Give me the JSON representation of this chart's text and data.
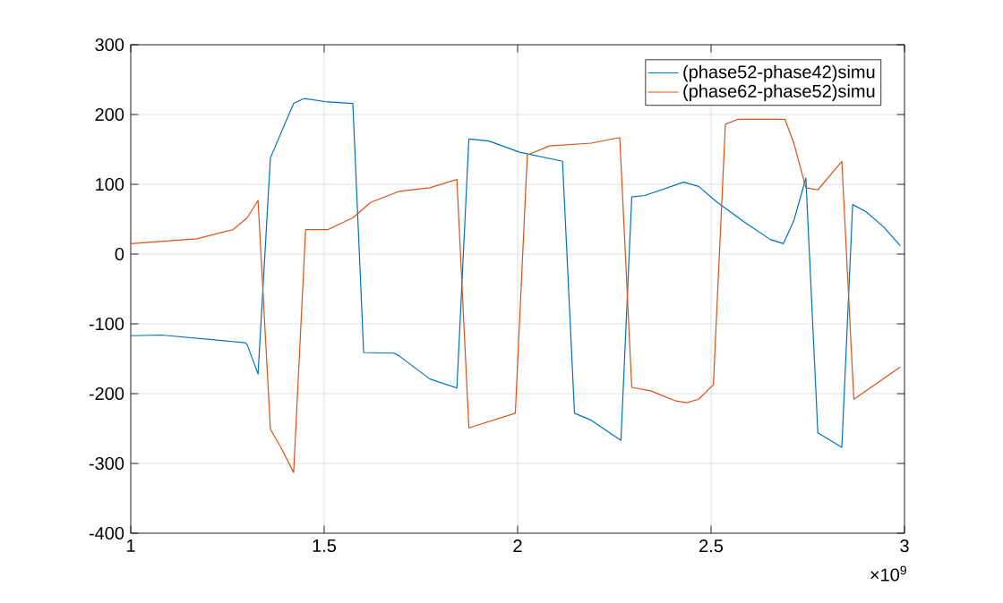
{
  "chart_data": {
    "type": "line",
    "xlim": [
      1,
      3
    ],
    "ylim": [
      -400,
      300
    ],
    "xticks": [
      1,
      1.5,
      2,
      2.5,
      3
    ],
    "yticks": [
      -400,
      -300,
      -200,
      -100,
      0,
      100,
      200,
      300
    ],
    "grid": true,
    "legend": "top right",
    "line_style": "solid",
    "marker": "none",
    "annotations": [
      "×10$^{9}$"
    ],
    "series": [
      {
        "name": "(phase52-phase42)simu",
        "color": "#0072bd",
        "x": [
          1.0,
          1.079,
          1.296,
          1.301,
          1.329,
          1.361,
          1.421,
          1.449,
          1.509,
          1.574,
          1.602,
          1.681,
          1.694,
          1.773,
          1.843,
          1.874,
          1.926,
          2.005,
          2.116,
          2.147,
          2.19,
          2.267,
          2.295,
          2.329,
          2.429,
          2.468,
          2.514,
          2.591,
          2.653,
          2.687,
          2.714,
          2.745,
          2.776,
          2.838,
          2.866,
          2.9,
          2.946,
          2.989
        ],
        "values": [
          -117,
          -116,
          -127,
          -130,
          -172,
          138,
          216,
          223,
          218,
          216,
          -141,
          -142,
          -146,
          -179,
          -192,
          165,
          162,
          146,
          133,
          -228,
          -238,
          -267,
          82,
          84,
          103,
          97,
          75,
          44,
          21,
          15,
          48,
          109,
          -256,
          -277,
          71,
          61,
          39,
          12
        ]
      },
      {
        "name": "(phase62-phase52)simu",
        "color": "#d95319",
        "x": [
          1.0,
          1.171,
          1.264,
          1.301,
          1.329,
          1.361,
          1.388,
          1.421,
          1.452,
          1.509,
          1.574,
          1.62,
          1.694,
          1.773,
          1.843,
          1.874,
          1.994,
          2.025,
          2.082,
          2.19,
          2.264,
          2.295,
          2.344,
          2.406,
          2.437,
          2.468,
          2.506,
          2.537,
          2.568,
          2.691,
          2.714,
          2.745,
          2.776,
          2.838,
          2.869,
          2.989
        ],
        "values": [
          15,
          22,
          35,
          52,
          77,
          -251,
          -277,
          -313,
          35,
          35,
          52,
          74,
          90,
          95,
          107,
          -249,
          -228,
          142,
          155,
          159,
          167,
          -191,
          -196,
          -210,
          -213,
          -208,
          -187,
          186,
          193,
          193,
          159,
          95,
          92,
          133,
          -208,
          -162
        ]
      }
    ]
  }
}
